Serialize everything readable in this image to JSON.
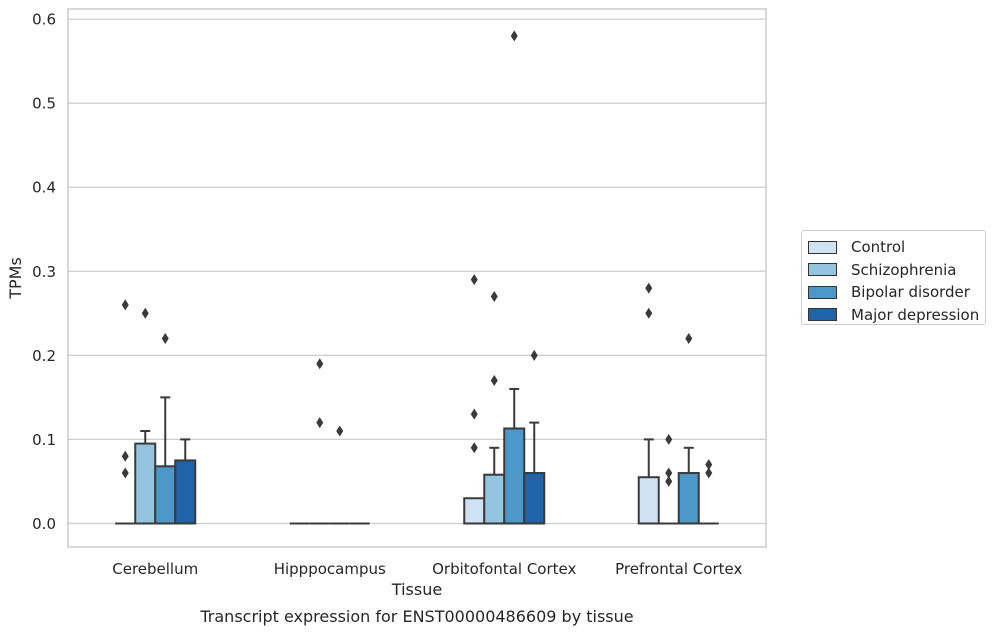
{
  "chart_data": {
    "type": "box",
    "caption": "Transcript expression for ENST00000486609 by tissue",
    "xlabel": "Tissue",
    "ylabel": "TPMs",
    "ylim": [
      -0.028,
      0.612
    ],
    "yticks": [
      "0.0",
      "0.1",
      "0.2",
      "0.3",
      "0.4",
      "0.5",
      "0.6"
    ],
    "grid": true,
    "legend_position": "right",
    "categories": [
      "Cerebellum",
      "Hipppocampus",
      "Orbitofontal Cortex",
      "Prefrontal Cortex"
    ],
    "series": [
      {
        "name": "Control",
        "color": "#d0e1f2",
        "boxes": [
          {
            "q1": 0,
            "median": 0,
            "q3": 0,
            "whisker_low": 0,
            "whisker_high": 0,
            "outliers": [
              0.06,
              0.08,
              0.26
            ]
          },
          {
            "q1": 0,
            "median": 0,
            "q3": 0,
            "whisker_low": 0,
            "whisker_high": 0,
            "outliers": []
          },
          {
            "q1": 0,
            "median": 0,
            "q3": 0.03,
            "whisker_low": 0,
            "whisker_high": 0.03,
            "outliers": [
              0.09,
              0.13,
              0.29
            ]
          },
          {
            "q1": 0,
            "median": 0,
            "q3": 0.055,
            "whisker_low": 0,
            "whisker_high": 0.1,
            "outliers": [
              0.25,
              0.28
            ]
          }
        ]
      },
      {
        "name": "Schizophrenia",
        "color": "#94c4df",
        "boxes": [
          {
            "q1": 0,
            "median": 0,
            "q3": 0.095,
            "whisker_low": 0,
            "whisker_high": 0.11,
            "outliers": [
              0.25
            ]
          },
          {
            "q1": 0,
            "median": 0,
            "q3": 0,
            "whisker_low": 0,
            "whisker_high": 0,
            "outliers": [
              0.12,
              0.19
            ]
          },
          {
            "q1": 0,
            "median": 0,
            "q3": 0.058,
            "whisker_low": 0,
            "whisker_high": 0.09,
            "outliers": [
              0.17,
              0.27
            ]
          },
          {
            "q1": 0,
            "median": 0,
            "q3": 0,
            "whisker_low": 0,
            "whisker_high": 0,
            "outliers": [
              0.05,
              0.06,
              0.1
            ]
          }
        ]
      },
      {
        "name": "Bipolar disorder",
        "color": "#4b98c9",
        "boxes": [
          {
            "q1": 0,
            "median": 0,
            "q3": 0.068,
            "whisker_low": 0,
            "whisker_high": 0.15,
            "outliers": [
              0.22
            ]
          },
          {
            "q1": 0,
            "median": 0,
            "q3": 0,
            "whisker_low": 0,
            "whisker_high": 0,
            "outliers": [
              0.11
            ]
          },
          {
            "q1": 0,
            "median": 0,
            "q3": 0.113,
            "whisker_low": 0,
            "whisker_high": 0.16,
            "outliers": [
              0.58
            ]
          },
          {
            "q1": 0,
            "median": 0,
            "q3": 0.06,
            "whisker_low": 0,
            "whisker_high": 0.09,
            "outliers": [
              0.22
            ]
          }
        ]
      },
      {
        "name": "Major depression",
        "color": "#1f63a8",
        "boxes": [
          {
            "q1": 0,
            "median": 0,
            "q3": 0.075,
            "whisker_low": 0,
            "whisker_high": 0.1,
            "outliers": []
          },
          {
            "q1": 0,
            "median": 0,
            "q3": 0,
            "whisker_low": 0,
            "whisker_high": 0,
            "outliers": []
          },
          {
            "q1": 0,
            "median": 0,
            "q3": 0.06,
            "whisker_low": 0,
            "whisker_high": 0.12,
            "outliers": [
              0.2
            ]
          },
          {
            "q1": 0,
            "median": 0,
            "q3": 0,
            "whisker_low": 0,
            "whisker_high": 0,
            "outliers": [
              0.06,
              0.07
            ]
          }
        ]
      }
    ]
  }
}
